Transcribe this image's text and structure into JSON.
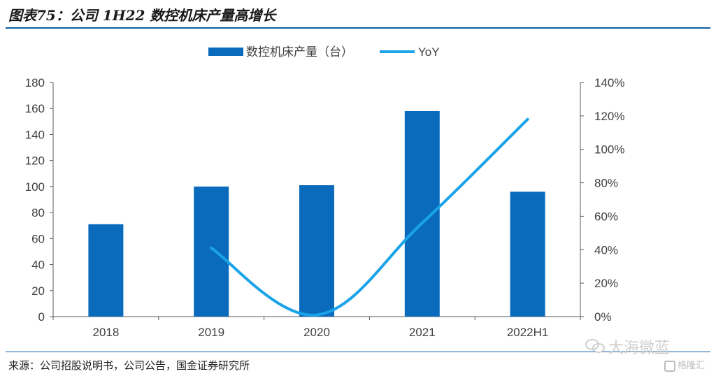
{
  "header": {
    "title": "图表75：公司 1H22 数控机床产量高增长"
  },
  "footer": {
    "source": "来源：公司招股说明书，公司公告，国金证券研究所"
  },
  "watermark": {
    "text": "大海微蓝",
    "brand": "格隆汇"
  },
  "colors": {
    "bar": "#0a6bbd",
    "line": "#1aa3e8",
    "rule": "#0e5fa8"
  },
  "chart_data": {
    "type": "bar",
    "categories": [
      "2018",
      "2019",
      "2020",
      "2021",
      "2022H1"
    ],
    "series": [
      {
        "name": "数控机床产量（台）",
        "type": "bar",
        "axis": "left",
        "values": [
          71,
          100,
          101,
          158,
          96
        ]
      },
      {
        "name": "YoY",
        "type": "line",
        "axis": "right",
        "values": [
          null,
          41,
          1,
          56,
          118
        ]
      }
    ],
    "y_left": {
      "min": 0,
      "max": 180,
      "ticks": [
        "0",
        "20",
        "40",
        "60",
        "80",
        "100",
        "120",
        "140",
        "160",
        "180"
      ]
    },
    "y_right": {
      "min": 0,
      "max": 140,
      "ticks": [
        "0%",
        "20%",
        "40%",
        "60%",
        "80%",
        "100%",
        "120%",
        "140%"
      ]
    },
    "legend_position": "top-center",
    "grid": false
  }
}
